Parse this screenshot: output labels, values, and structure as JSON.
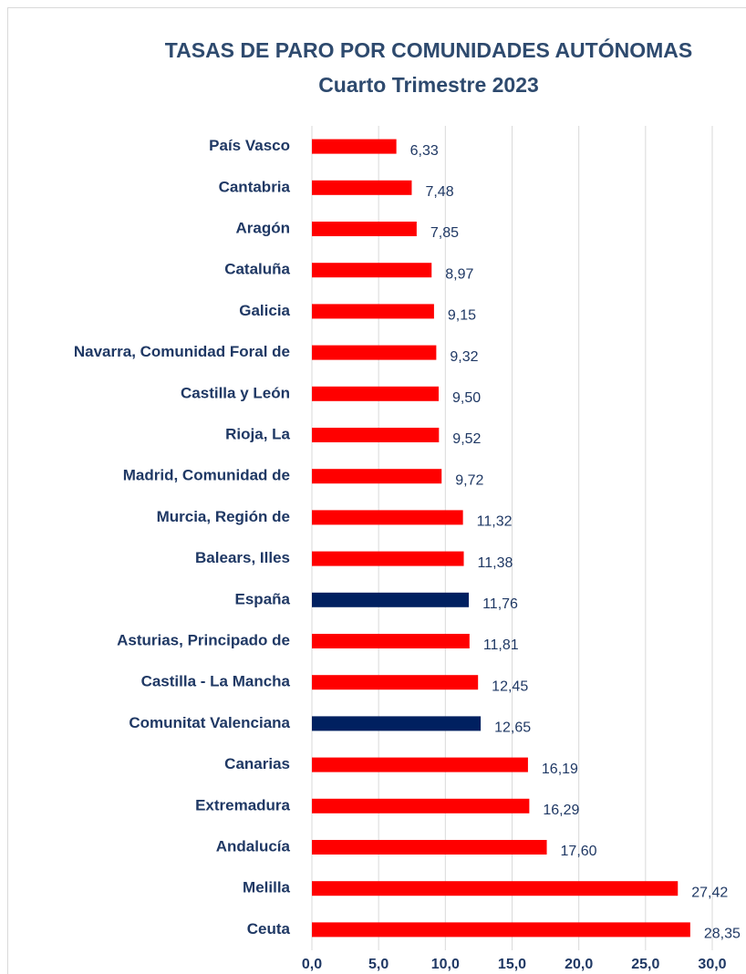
{
  "chart_data": {
    "type": "barh",
    "title": "TASAS DE PARO POR COMUNIDADES AUTÓNOMAS",
    "subtitle": "Cuarto Trimestre 2023",
    "categories": [
      "País Vasco",
      "Cantabria",
      "Aragón",
      "Cataluña",
      "Galicia",
      "Navarra, Comunidad Foral de",
      "Castilla y León",
      "Rioja, La",
      "Madrid, Comunidad de",
      "Murcia, Región de",
      "Balears, Illes",
      "España",
      "Asturias, Principado de",
      "Castilla - La Mancha",
      "Comunitat Valenciana",
      "Canarias",
      "Extremadura",
      "Andalucía",
      "Melilla",
      "Ceuta"
    ],
    "values": [
      6.33,
      7.48,
      7.85,
      8.97,
      9.15,
      9.32,
      9.5,
      9.52,
      9.72,
      11.32,
      11.38,
      11.76,
      11.81,
      12.45,
      12.65,
      16.19,
      16.29,
      17.6,
      27.42,
      28.35
    ],
    "value_labels": [
      "6,33",
      "7,48",
      "7,85",
      "8,97",
      "9,15",
      "9,32",
      "9,50",
      "9,52",
      "9,72",
      "11,32",
      "11,38",
      "11,76",
      "11,81",
      "12,45",
      "12,65",
      "16,19",
      "16,29",
      "17,60",
      "27,42",
      "28,35"
    ],
    "colors": [
      "#ff0000",
      "#ff0000",
      "#ff0000",
      "#ff0000",
      "#ff0000",
      "#ff0000",
      "#ff0000",
      "#ff0000",
      "#ff0000",
      "#ff0000",
      "#ff0000",
      "#002060",
      "#ff0000",
      "#ff0000",
      "#002060",
      "#ff0000",
      "#ff0000",
      "#ff0000",
      "#ff0000",
      "#ff0000"
    ],
    "xlim": [
      0,
      30
    ],
    "xticks": [
      {
        "value": 0,
        "label": "0,0"
      },
      {
        "value": 5,
        "label": "5,0"
      },
      {
        "value": 10,
        "label": "10,0"
      },
      {
        "value": 15,
        "label": "15,0"
      },
      {
        "value": 20,
        "label": "20,0"
      },
      {
        "value": 25,
        "label": "25,0"
      },
      {
        "value": 30,
        "label": "30,0"
      }
    ],
    "grid": true
  }
}
